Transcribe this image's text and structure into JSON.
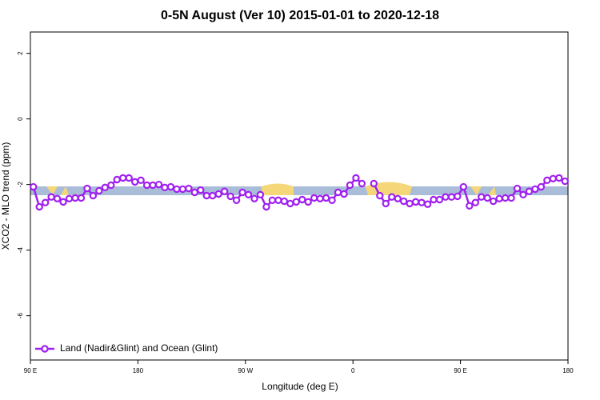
{
  "chart_data": {
    "type": "line",
    "title": "0-5N August (Ver 10)   2015-01-01 to 2020-12-18",
    "x_label": "Longitude (deg E)",
    "y_label": "XCO2 - MLO trend (ppm)",
    "xlim": [
      90,
      540
    ],
    "ylim": [
      -7.35,
      2.65
    ],
    "xticks": [
      {
        "value": 90,
        "label": "90 E"
      },
      180,
      {
        "value": 270,
        "label": "90 W"
      },
      {
        "value": 360,
        "label": "0"
      },
      {
        "value": 450,
        "label": "90 E"
      },
      {
        "value": 540,
        "label": "180"
      }
    ],
    "yticks": [
      2,
      0,
      -2,
      -4,
      -6
    ],
    "legend": "bottom-left",
    "x": [
      92.5,
      97.5,
      102.5,
      107.5,
      112.5,
      117.5,
      122.5,
      127.5,
      132.5,
      137.5,
      142.5,
      147.5,
      152.5,
      157.5,
      162.5,
      167.5,
      172.5,
      177.5,
      182.5,
      187.5,
      192.5,
      197.5,
      202.5,
      207.5,
      212.5,
      217.5,
      222.5,
      227.5,
      232.5,
      237.5,
      242.5,
      247.5,
      252.5,
      257.5,
      262.5,
      267.5,
      272.5,
      277.5,
      282.5,
      287.5,
      292.5,
      297.5,
      302.5,
      307.5,
      312.5,
      317.5,
      322.5,
      327.5,
      332.5,
      337.5,
      342.5,
      347.5,
      352.5,
      357.5,
      362.5,
      367.5,
      372.5,
      377.5,
      382.5,
      387.5,
      392.5,
      397.5,
      402.5,
      407.5,
      412.5,
      417.5,
      422.5,
      427.5,
      432.5,
      437.5,
      442.5,
      447.5,
      452.5,
      457.5,
      462.5,
      467.5,
      472.5,
      477.5,
      482.5,
      487.5,
      492.5,
      497.5,
      502.5,
      507.5,
      512.5,
      517.5,
      522.5,
      527.5,
      532.5,
      537.5
    ],
    "series": [
      {
        "name": "Land (Nadir&Glint) and Ocean (Glint)",
        "color": "#a020f0",
        "values": [
          -2.07,
          -2.68,
          -2.55,
          -2.38,
          -2.43,
          -2.53,
          -2.43,
          -2.41,
          -2.41,
          -2.12,
          -2.34,
          -2.19,
          -2.09,
          -2.02,
          -1.85,
          -1.8,
          -1.8,
          -1.92,
          -1.87,
          -2.02,
          -2.02,
          -2.0,
          -2.09,
          -2.07,
          -2.14,
          -2.14,
          -2.12,
          -2.24,
          -2.17,
          -2.34,
          -2.34,
          -2.29,
          -2.21,
          -2.36,
          -2.48,
          -2.24,
          -2.31,
          -2.43,
          -2.31,
          -2.68,
          -2.48,
          -2.48,
          -2.51,
          -2.58,
          -2.53,
          -2.46,
          -2.53,
          -2.41,
          -2.43,
          -2.41,
          -2.48,
          -2.24,
          -2.29,
          -2.02,
          -1.8,
          -1.97,
          null,
          -1.97,
          -2.34,
          -2.58,
          -2.38,
          -2.43,
          -2.51,
          -2.58,
          -2.53,
          -2.55,
          -2.6,
          -2.46,
          -2.46,
          -2.38,
          -2.38,
          -2.36,
          -2.07,
          -2.65,
          -2.55,
          -2.38,
          -2.41,
          -2.51,
          -2.43,
          -2.41,
          -2.41,
          -2.12,
          -2.31,
          -2.21,
          -2.14,
          -2.07,
          -1.87,
          -1.82,
          -1.8,
          -1.9
        ]
      }
    ]
  }
}
